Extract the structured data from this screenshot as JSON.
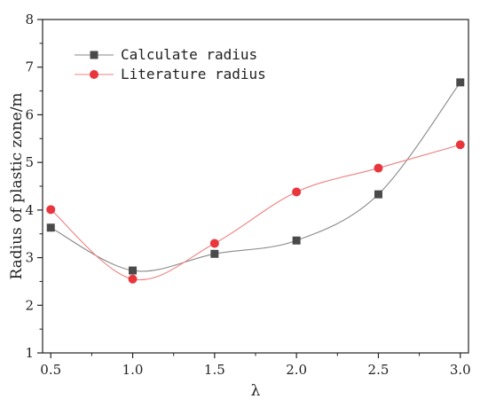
{
  "chart_data": {
    "type": "line",
    "xlabel": "λ",
    "ylabel": "Radius of plastic zone/m",
    "x": [
      0.5,
      1.0,
      1.5,
      2.0,
      2.5,
      3.0
    ],
    "xticks": [
      "0.5",
      "1.0",
      "1.5",
      "2.0",
      "2.5",
      "3.0"
    ],
    "yticks": [
      "1",
      "2",
      "3",
      "4",
      "5",
      "6",
      "7",
      "8"
    ],
    "xlim": [
      0.45,
      3.05
    ],
    "ylim": [
      1,
      8
    ],
    "grid": false,
    "legend_position": "top-left",
    "series": [
      {
        "name": "Calculate radius",
        "marker": "square",
        "color": "#4a4a4a",
        "line_color": "#888888",
        "values": [
          3.63,
          2.73,
          3.08,
          3.36,
          4.33,
          6.68
        ]
      },
      {
        "name": "Literature radius",
        "marker": "circle",
        "color": "#e8363c",
        "line_color": "#f08080",
        "values": [
          4.01,
          2.55,
          3.3,
          4.38,
          4.88,
          5.37
        ]
      }
    ]
  }
}
